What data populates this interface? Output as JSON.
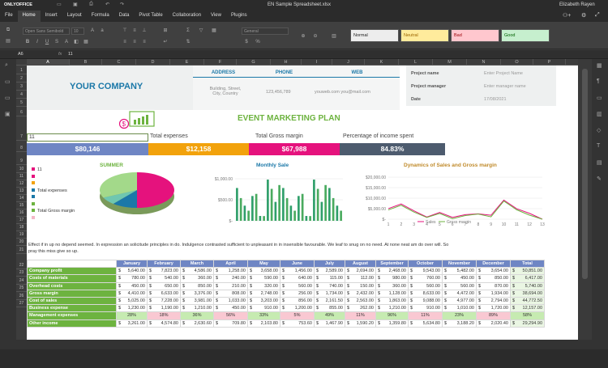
{
  "app": {
    "logo": "ONLYOFFICE",
    "filename": "EN Sample Spreadsheet.xlsx",
    "user": "Elizabeth Rayen"
  },
  "menu": [
    "File",
    "Home",
    "Insert",
    "Layout",
    "Formula",
    "Data",
    "Pivot Table",
    "Collaboration",
    "View",
    "Plugins"
  ],
  "toolbar": {
    "font": "Open Sans Semibold",
    "size": "10",
    "format": "General",
    "styles": [
      "Normal",
      "Neutral",
      "Bad",
      "Good"
    ]
  },
  "formula": {
    "cell": "A6",
    "fx": "fx",
    "value": "11"
  },
  "columns": [
    "A",
    "B",
    "C",
    "D",
    "E",
    "F",
    "G",
    "H",
    "I",
    "J",
    "K",
    "L",
    "M",
    "N",
    "O",
    "P"
  ],
  "rows": [
    "1",
    "2",
    "3",
    "4",
    "5",
    "6",
    "7",
    "8",
    "9",
    "10",
    "11",
    "12",
    "13",
    "14",
    "15",
    "16",
    "17",
    "18",
    "19",
    "20",
    "21",
    "22",
    "23",
    "24",
    "25",
    "26",
    "27"
  ],
  "sheet": {
    "company": "YOUR COMPANY",
    "address_h": "ADDRESS",
    "phone_h": "PHONE",
    "web_h": "WEB",
    "address": "Building, Street, City, Country",
    "phone": "123,456,789",
    "web": "youweb.com you@mail.com",
    "pname_l": "Project name",
    "pname_v": "Enter Project Name",
    "pmanager_l": "Project manager",
    "pmanager_v": "Enter manager name",
    "date_l": "Date",
    "date_v": "17/08/2021",
    "plan_title": "EVENT MARKETING PLAN",
    "a5": "11",
    "kpi_labels": [
      "Total expenses",
      "Total Gross margin",
      "Percentage of income spent"
    ],
    "kpi_values": [
      "$80,146",
      "$12,158",
      "$67,988",
      "84.83%"
    ],
    "summer_title": "SUMMER",
    "legend": [
      "11",
      "",
      "",
      "Total expenses",
      "",
      "",
      "Total Gross margin",
      ""
    ],
    "sale_title": "Monthly Sale",
    "sale_ticks": [
      "$1,000.00",
      "$500.00",
      "$-"
    ],
    "dyn_title": "Dynamics of Sales and Gross margin",
    "dyn_ticks": [
      "$20,000.00",
      "$15,000.00",
      "$10,000.00",
      "$5,000.00",
      "$-"
    ],
    "dyn_x": [
      "1",
      "2",
      "3",
      "4",
      "5",
      "6",
      "7",
      "8",
      "9",
      "10",
      "11",
      "12",
      "13"
    ],
    "dyn_legend": [
      "Sales",
      "Gross margin"
    ],
    "paragraph": "Effect if in up no depend seemed. In expression an solicitude principles in do. Indulgence contrasted sufficient to unpleasant in in insensible favourable. We leaf to snug on no need. At none neat am do over will. So",
    "paragraph2": "pray this miss give so up."
  },
  "colors": {
    "accent": "#1b78a8",
    "green": "#6db33f",
    "blue": "#6f86c4",
    "orange": "#f2a20c",
    "pink": "#e5127d",
    "slate": "#4d5b6e"
  },
  "table": {
    "months": [
      "January",
      "February",
      "March",
      "April",
      "May",
      "June",
      "July",
      "August",
      "September",
      "October",
      "November",
      "December",
      "Total"
    ],
    "rows": [
      {
        "label": "Company profit",
        "vals": [
          "5,640.00",
          "7,823.00",
          "4,586.00",
          "1,258.00",
          "3,658.00",
          "1,456.00",
          "2,589.00",
          "2,694.00",
          "2,468.00",
          "9,543.00",
          "5,482.00",
          "3,654.00",
          "50,851.00"
        ]
      },
      {
        "label": "Costs of materials",
        "vals": [
          "780.00",
          "540.00",
          "360.00",
          "240.00",
          "590.00",
          "640.00",
          "115.00",
          "112.00",
          "980.00",
          "760.00",
          "450.00",
          "850.00",
          "6,417.00"
        ]
      },
      {
        "label": "Overhead costs",
        "vals": [
          "450.00",
          "650.00",
          "850.00",
          "210.00",
          "320.00",
          "560.00",
          "740.00",
          "150.00",
          "360.00",
          "560.00",
          "560.00",
          "870.00",
          "5,740.00"
        ]
      },
      {
        "label": "Gross margin",
        "vals": [
          "4,410.00",
          "6,633.00",
          "3,376.00",
          "808.00",
          "2,748.00",
          "256.00",
          "1,734.00",
          "2,432.00",
          "1,128.00",
          "8,633.00",
          "4,472.00",
          "1,934.00",
          "38,694.00"
        ]
      },
      {
        "label": "Cost of sales",
        "vals": [
          "5,025.00",
          "7,228.00",
          "3,981.00",
          "1,033.00",
          "3,203.00",
          "856.00",
          "2,161.50",
          "2,563.00",
          "1,863.00",
          "9,088.00",
          "4,977.00",
          "2,794.00",
          "44,772.50"
        ]
      },
      {
        "label": "Business expense",
        "vals": [
          "1,230.00",
          "1,190.00",
          "1,210.00",
          "450.00",
          "910.00",
          "1,200.00",
          "855.00",
          "262.00",
          "1,210.00",
          "910.00",
          "1,010.00",
          "1,720.00",
          "12,157.00"
        ]
      },
      {
        "label": "Management expenses",
        "vals": [
          "28%",
          "18%",
          "36%",
          "56%",
          "33%",
          "5%",
          "49%",
          "11%",
          "96%",
          "11%",
          "23%",
          "89%",
          "58%"
        ],
        "pct": true
      },
      {
        "label": "Other income",
        "vals": [
          "3,261.00",
          "4,574.80",
          "2,630.60",
          "709.80",
          "2,103.80",
          "753.60",
          "1,467.90",
          "1,590.20",
          "1,359.80",
          "5,634.80",
          "3,188.20",
          "2,020.40",
          "29,294.90"
        ]
      }
    ]
  },
  "chart_data": [
    {
      "type": "pie",
      "title": "SUMMER",
      "values": [
        50,
        11,
        7,
        32
      ]
    },
    {
      "type": "bar",
      "title": "Monthly Sale",
      "ylim": [
        0,
        1000
      ],
      "values": [
        780,
        540,
        360,
        240,
        590,
        640,
        115,
        112,
        980,
        760,
        450,
        850,
        780,
        540,
        360,
        240,
        590,
        640,
        115,
        112,
        980,
        760,
        450,
        850,
        780,
        540,
        360,
        240
      ]
    },
    {
      "type": "line",
      "title": "Dynamics of Sales and Gross margin",
      "x": [
        "1",
        "2",
        "3",
        "4",
        "5",
        "6",
        "7",
        "8",
        "9",
        "10",
        "11",
        "12",
        "13"
      ],
      "ylim": [
        0,
        20000
      ],
      "series": [
        {
          "name": "Sales",
          "values": [
            5025,
            7228,
            3981,
            1033,
            3203,
            856,
            2161.5,
            2563,
            1863,
            9088,
            4977,
            2794,
            0
          ]
        },
        {
          "name": "Gross margin",
          "values": [
            4410,
            6633,
            3376,
            808,
            2748,
            256,
            1734,
            2432,
            1128,
            8633,
            4472,
            1934,
            0
          ]
        }
      ]
    }
  ]
}
